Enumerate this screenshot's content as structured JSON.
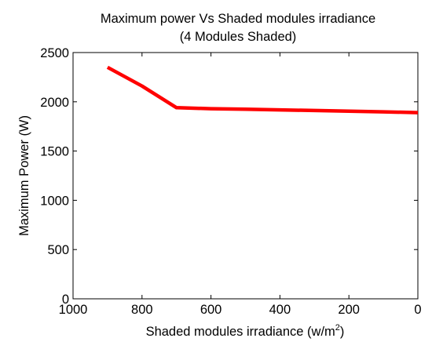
{
  "chart_data": {
    "type": "line",
    "title": "Maximum power Vs Shaded modules irradiance",
    "subtitle": "(4 Modules Shaded)",
    "xlabel_main": "Shaded modules irradiance (w/m",
    "xlabel_superscript": "2",
    "xlabel_close": ")",
    "ylabel": "Maximum Power (W)",
    "xlim": [
      1000,
      0
    ],
    "ylim": [
      0,
      2500
    ],
    "x_reversed": true,
    "xticks": [
      1000,
      800,
      600,
      400,
      200,
      0
    ],
    "yticks": [
      0,
      500,
      1000,
      1500,
      2000,
      2500
    ],
    "grid": false,
    "series": [
      {
        "color": "#ff0000",
        "x": [
          900,
          800,
          700,
          600,
          500,
          400,
          300,
          200,
          100,
          0
        ],
        "y": [
          2350,
          2160,
          1940,
          1930,
          1925,
          1918,
          1912,
          1905,
          1898,
          1890
        ]
      }
    ]
  }
}
